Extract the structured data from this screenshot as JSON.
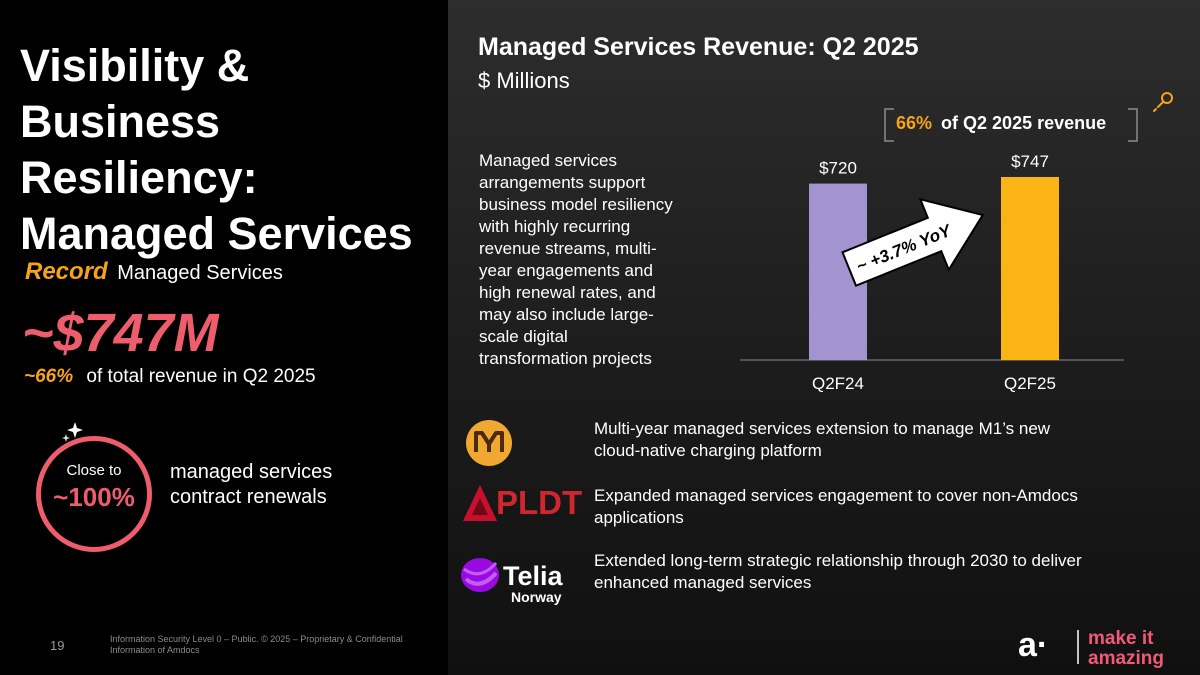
{
  "left": {
    "title_lines": [
      "Visibility & Business",
      "Resiliency:",
      "Managed Services"
    ],
    "record_word": "Record",
    "record_rest": "Managed Services",
    "big_value": "~$747M",
    "pct_word": "~66%",
    "pct_rest": "of total revenue in Q2 2025",
    "ring": {
      "close_to": "Close to",
      "value": "~100%"
    },
    "renewals_lines": [
      "managed services",
      "contract renewals"
    ]
  },
  "footer": {
    "page_number": "19",
    "legal_lines": [
      "Information Security Level 0 – Public. © 2025 – Proprietary & Confidential",
      "Information of Amdocs"
    ]
  },
  "chart_header": {
    "title": "Managed Services Revenue: Q2 2025",
    "subtitle": "$ Millions",
    "callout_pct": "66%",
    "callout_rest": "of Q2 2025 revenue",
    "growth_label": "~ +3.7% YoY"
  },
  "description_lines": [
    "Managed services",
    "arrangements support",
    "business model resiliency",
    "with highly recurring",
    "revenue streams, multi-",
    "year engagements and",
    "high renewal rates, and",
    "may also include large-",
    "scale digital",
    "transformation projects"
  ],
  "chart_data": {
    "type": "bar",
    "title": "Managed Services Revenue: Q2 2025",
    "ylabel": "$ Millions",
    "categories": [
      "Q2F24",
      "Q2F25"
    ],
    "values": [
      720,
      747
    ],
    "value_labels": [
      "$720",
      "$747"
    ],
    "ylim": [
      0,
      800
    ],
    "colors": [
      "#a394d0",
      "#fbb416"
    ],
    "annotation": "~ +3.7% YoY"
  },
  "customers": [
    {
      "logo": "M1",
      "lines": [
        "Multi-year managed services extension to manage M1’s new",
        "cloud-native charging platform"
      ]
    },
    {
      "logo": "PLDT",
      "lines": [
        "Expanded managed services engagement to cover non-Amdocs",
        "applications"
      ]
    },
    {
      "logo": "Telia",
      "logo_sub": "Norway",
      "lines": [
        "Extended long-term strategic relationship through 2030 to deliver",
        "enhanced managed services"
      ]
    }
  ],
  "brand": {
    "symbol": "a·",
    "line1": "make it",
    "line2": "amazing"
  },
  "colors": {
    "orange": "#f7a21b",
    "coral": "#ee5d6c",
    "lavender": "#a394d0",
    "yellow": "#fbb416"
  }
}
